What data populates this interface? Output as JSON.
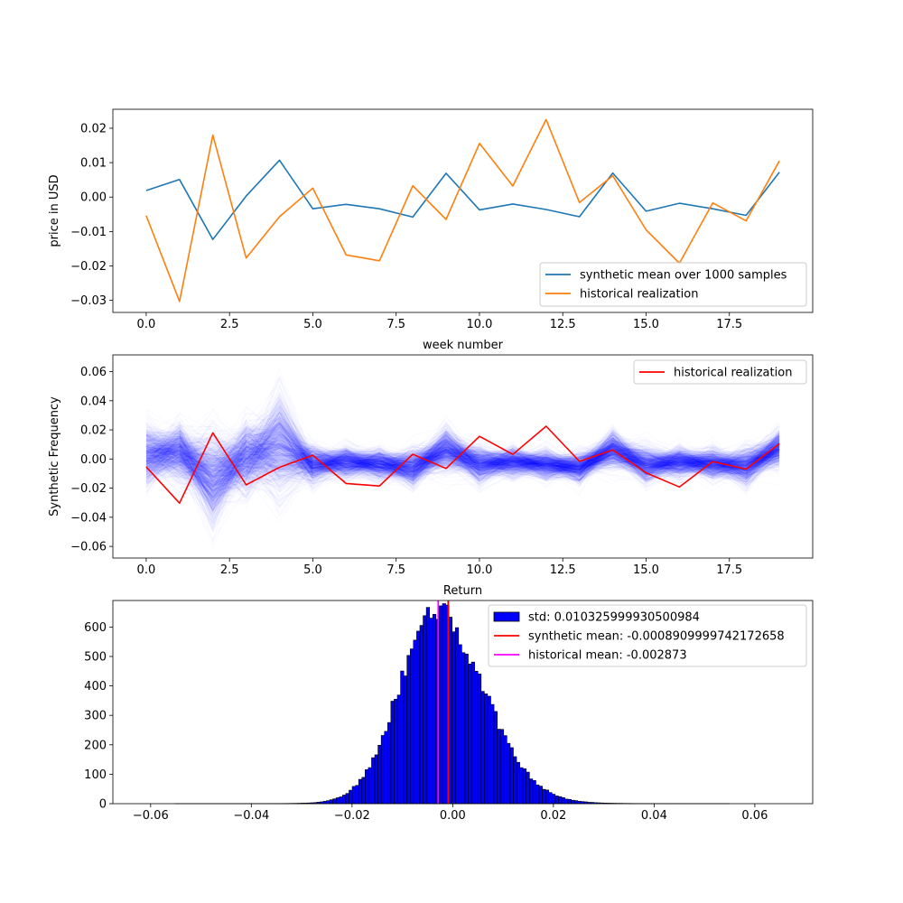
{
  "colors": {
    "synthetic_mean_line": "#1f77b4",
    "historical_line": "#ff7f0e",
    "historical_red": "#ff0000",
    "sample_paths": "#0000ff",
    "hist_bar_fill": "#0000ff",
    "hist_bar_edge": "#000000",
    "synthetic_mean_vline": "#ff0000",
    "historical_mean_vline": "#ff00ff"
  },
  "chart_data": [
    {
      "type": "line",
      "x": [
        0,
        1,
        2,
        3,
        4,
        5,
        6,
        7,
        8,
        9,
        10,
        11,
        12,
        13,
        14,
        15,
        16,
        17,
        18,
        19
      ],
      "xlabel": "week number",
      "ylabel": "price in USD",
      "xlim": [
        -1,
        20
      ],
      "ylim": [
        -0.0335,
        0.0255
      ],
      "xticks": [
        0,
        2.5,
        5,
        7.5,
        10,
        12.5,
        15,
        17.5
      ],
      "xtick_labels": [
        "0.0",
        "2.5",
        "5.0",
        "7.5",
        "10.0",
        "12.5",
        "15.0",
        "17.5"
      ],
      "yticks": [
        -0.03,
        -0.02,
        -0.01,
        0,
        0.01,
        0.02
      ],
      "ytick_labels": [
        "−0.03",
        "−0.02",
        "−0.01",
        "0.00",
        "0.01",
        "0.02"
      ],
      "legend_position": "lower-right",
      "series": [
        {
          "name": "synthetic mean over 1000 samples",
          "color": "#1f77b4",
          "values": [
            0.0019,
            0.0051,
            -0.0123,
            0.0003,
            0.0107,
            -0.0034,
            -0.0021,
            -0.0034,
            -0.0058,
            0.0069,
            -0.0037,
            -0.002,
            -0.0036,
            -0.0057,
            0.007,
            -0.0041,
            -0.0018,
            -0.0034,
            -0.0053,
            0.0072
          ]
        },
        {
          "name": "historical realization",
          "color": "#ff7f0e",
          "values": [
            -0.0054,
            -0.0303,
            0.018,
            -0.0177,
            -0.0057,
            0.0026,
            -0.0168,
            -0.0185,
            0.0033,
            -0.0065,
            0.0156,
            0.0032,
            0.0225,
            -0.0016,
            0.0062,
            -0.0095,
            -0.0192,
            -0.0017,
            -0.0069,
            0.0105
          ]
        }
      ]
    },
    {
      "type": "line",
      "x": [
        0,
        1,
        2,
        3,
        4,
        5,
        6,
        7,
        8,
        9,
        10,
        11,
        12,
        13,
        14,
        15,
        16,
        17,
        18,
        19
      ],
      "xlabel": "Return",
      "ylabel": "Synthetic Frequency",
      "xlim": [
        -1,
        20
      ],
      "ylim": [
        -0.068,
        0.0715
      ],
      "xticks": [
        0,
        2.5,
        5,
        7.5,
        10,
        12.5,
        15,
        17.5
      ],
      "xtick_labels": [
        "0.0",
        "2.5",
        "5.0",
        "7.5",
        "10.0",
        "12.5",
        "15.0",
        "17.5"
      ],
      "yticks": [
        -0.06,
        -0.04,
        -0.02,
        0,
        0.02,
        0.04,
        0.06
      ],
      "ytick_labels": [
        "−0.06",
        "−0.04",
        "−0.02",
        "0.00",
        "0.02",
        "0.04",
        "0.06"
      ],
      "legend_position": "upper-right",
      "sample_paths": {
        "count": 1000,
        "mean": [
          0.0019,
          0.0051,
          -0.0123,
          0.0003,
          0.0107,
          -0.0034,
          -0.0021,
          -0.0034,
          -0.0058,
          0.0069,
          -0.0037,
          -0.002,
          -0.0036,
          -0.0057,
          0.007,
          -0.0041,
          -0.0018,
          -0.0034,
          -0.0053,
          0.0072
        ],
        "std": [
          0.01,
          0.009,
          0.015,
          0.011,
          0.016,
          0.006,
          0.005,
          0.005,
          0.006,
          0.007,
          0.006,
          0.005,
          0.005,
          0.005,
          0.006,
          0.006,
          0.005,
          0.005,
          0.006,
          0.006
        ]
      },
      "series": [
        {
          "name": "historical realization",
          "color": "#ff0000",
          "values": [
            -0.0054,
            -0.0303,
            0.018,
            -0.0177,
            -0.0057,
            0.0026,
            -0.0168,
            -0.0185,
            0.0033,
            -0.0065,
            0.0156,
            0.0032,
            0.0225,
            -0.0016,
            0.0062,
            -0.0095,
            -0.0192,
            -0.0017,
            -0.0069,
            0.0105
          ]
        }
      ]
    },
    {
      "type": "histogram",
      "xlim": [
        -0.0675,
        0.0715
      ],
      "ylim": [
        0,
        690
      ],
      "xticks": [
        -0.06,
        -0.04,
        -0.02,
        0,
        0.02,
        0.04,
        0.06
      ],
      "xtick_labels": [
        "−0.06",
        "−0.04",
        "−0.02",
        "0.00",
        "0.02",
        "0.04",
        "0.06"
      ],
      "yticks": [
        0,
        100,
        200,
        300,
        400,
        500,
        600
      ],
      "ytick_labels": [
        "0",
        "100",
        "200",
        "300",
        "400",
        "500",
        "600"
      ],
      "legend_position": "upper-right",
      "bins": {
        "start": -0.0622,
        "end": 0.0658,
        "count": 200
      },
      "distribution": {
        "peak": 660,
        "center": -0.0035,
        "sigma_left": 0.0072,
        "sigma_right": 0.0095,
        "tail_ratio": 0.04
      },
      "std_label": "std: 0.010325999930500984",
      "vlines": [
        {
          "name": "synthetic mean: -0.0008909999742172658",
          "x": -0.0008909999742172658,
          "color": "#ff0000"
        },
        {
          "name": "historical mean: -0.002873",
          "x": -0.002873,
          "color": "#ff00ff"
        }
      ]
    }
  ]
}
